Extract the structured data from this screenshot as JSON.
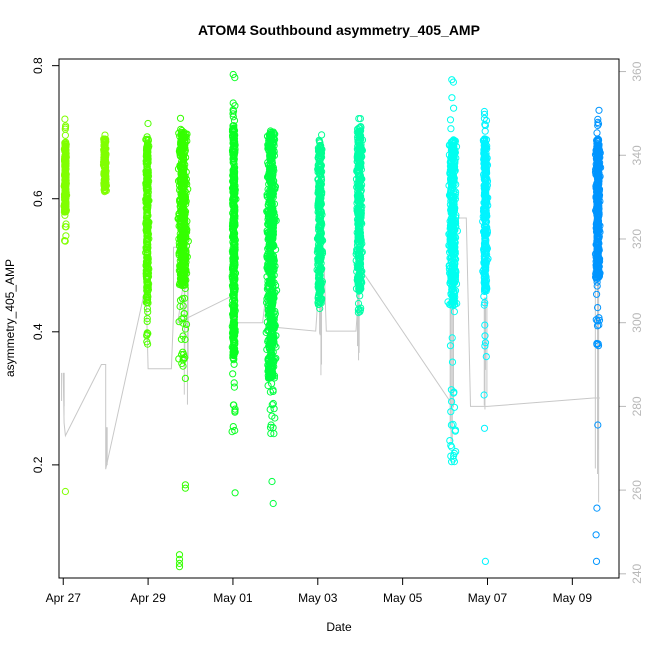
{
  "chart_data": {
    "type": "scatter",
    "title": "ATOM4 Southbound asymmetry_405_AMP",
    "xlabel": "Date",
    "ylabel": "asymmetry_405_AMP",
    "x_ticks": [
      {
        "day": 0,
        "label": "Apr 27"
      },
      {
        "day": 2,
        "label": "Apr 29"
      },
      {
        "day": 4,
        "label": "May 01"
      },
      {
        "day": 6,
        "label": "May 03"
      },
      {
        "day": 8,
        "label": "May 05"
      },
      {
        "day": 10,
        "label": "May 07"
      },
      {
        "day": 12,
        "label": "May 09"
      }
    ],
    "xlim": [
      -0.1,
      13.1
    ],
    "y_ticks": [
      0.2,
      0.4,
      0.6,
      0.8
    ],
    "y_tick_labels": [
      "0.2",
      "0.4",
      "0.6",
      "0.8"
    ],
    "ylim": [
      0.03,
      0.81
    ],
    "right_axis": {
      "ticks": [
        240,
        260,
        280,
        300,
        320,
        340,
        360
      ],
      "tick_labels": [
        "240",
        "260",
        "280",
        "300",
        "320",
        "340",
        "360"
      ],
      "lim": [
        239,
        363
      ],
      "color": "#b8b8b8"
    },
    "point_clusters": [
      {
        "x_center": 0.05,
        "width": 0.07,
        "color": "#80FF00",
        "core": [
          0.58,
          0.68
        ],
        "min": 0.535,
        "max": 0.72,
        "count": 240,
        "outliers": [
          {
            "x": 0.05,
            "y": 0.16
          }
        ]
      },
      {
        "x_center": 0.98,
        "width": 0.1,
        "color": "#80FF00",
        "core": [
          0.61,
          0.69
        ],
        "min": 0.605,
        "max": 0.7,
        "count": 150,
        "outliers": []
      },
      {
        "x_center": 1.98,
        "width": 0.1,
        "color": "#50FF00",
        "core": [
          0.44,
          0.69
        ],
        "min": 0.38,
        "max": 0.715,
        "count": 300,
        "outliers": [
          {
            "x": 1.97,
            "y": 0.385
          }
        ]
      },
      {
        "x_center": 2.82,
        "width": 0.3,
        "color": "#35FF00",
        "core": [
          0.47,
          0.7
        ],
        "min": 0.33,
        "max": 0.745,
        "count": 500,
        "outliers": [
          {
            "x": 2.88,
            "y": 0.33
          },
          {
            "x": 2.88,
            "y": 0.17
          },
          {
            "x": 2.88,
            "y": 0.165
          },
          {
            "x": 2.74,
            "y": 0.065
          },
          {
            "x": 2.74,
            "y": 0.058
          },
          {
            "x": 2.74,
            "y": 0.052
          },
          {
            "x": 2.74,
            "y": 0.047
          }
        ]
      },
      {
        "x_center": 4.02,
        "width": 0.12,
        "color": "#0AFF22",
        "core": [
          0.36,
          0.71
        ],
        "min": 0.25,
        "max": 0.79,
        "count": 450,
        "outliers": [
          {
            "x": 3.98,
            "y": 0.25
          },
          {
            "x": 4.05,
            "y": 0.158
          },
          {
            "x": 4.02,
            "y": 0.29
          }
        ]
      },
      {
        "x_center": 4.9,
        "width": 0.3,
        "color": "#00FF40",
        "core": [
          0.33,
          0.7
        ],
        "min": 0.245,
        "max": 0.705,
        "count": 700,
        "outliers": [
          {
            "x": 4.92,
            "y": 0.175
          },
          {
            "x": 4.95,
            "y": 0.142
          },
          {
            "x": 4.9,
            "y": 0.26
          }
        ]
      },
      {
        "x_center": 6.05,
        "width": 0.18,
        "color": "#00FF90",
        "core": [
          0.44,
          0.68
        ],
        "min": 0.425,
        "max": 0.705,
        "count": 320,
        "outliers": []
      },
      {
        "x_center": 6.98,
        "width": 0.2,
        "color": "#00FFA8",
        "core": [
          0.46,
          0.71
        ],
        "min": 0.425,
        "max": 0.73,
        "count": 400,
        "outliers": []
      },
      {
        "x_center": 9.18,
        "width": 0.28,
        "color": "#00FFF0",
        "core": [
          0.44,
          0.69
        ],
        "min": 0.2,
        "max": 0.79,
        "count": 420,
        "outliers": [
          {
            "x": 9.22,
            "y": 0.205
          },
          {
            "x": 9.25,
            "y": 0.22
          },
          {
            "x": 9.15,
            "y": 0.26
          }
        ]
      },
      {
        "x_center": 9.95,
        "width": 0.16,
        "color": "#00F4FF",
        "core": [
          0.46,
          0.69
        ],
        "min": 0.36,
        "max": 0.735,
        "count": 320,
        "outliers": [
          {
            "x": 9.93,
            "y": 0.255
          },
          {
            "x": 9.95,
            "y": 0.055
          },
          {
            "x": 9.92,
            "y": 0.305
          }
        ]
      },
      {
        "x_center": 12.6,
        "width": 0.16,
        "color": "#0095FF",
        "core": [
          0.48,
          0.69
        ],
        "min": 0.37,
        "max": 0.735,
        "count": 420,
        "outliers": [
          {
            "x": 12.58,
            "y": 0.135
          },
          {
            "x": 12.56,
            "y": 0.095
          },
          {
            "x": 12.57,
            "y": 0.055
          },
          {
            "x": 12.6,
            "y": 0.26
          }
        ]
      }
    ],
    "secondary_trace": {
      "color": "#c8c8c8",
      "path": [
        [
          0.0,
          288
        ],
        [
          0.02,
          276
        ],
        [
          0.05,
          273
        ],
        [
          0.9,
          290
        ],
        [
          1.0,
          290
        ],
        [
          1.0,
          275
        ],
        [
          1.0,
          265
        ],
        [
          1.95,
          309
        ],
        [
          2.0,
          289
        ],
        [
          2.55,
          289
        ],
        [
          2.6,
          302
        ],
        [
          2.6,
          318
        ],
        [
          2.95,
          318
        ],
        [
          2.7,
          300
        ],
        [
          3.9,
          306
        ],
        [
          4.05,
          306
        ],
        [
          4.05,
          300
        ],
        [
          4.7,
          300
        ],
        [
          4.85,
          313
        ],
        [
          4.95,
          313
        ],
        [
          4.9,
          299
        ],
        [
          5.95,
          298
        ],
        [
          6.05,
          313
        ],
        [
          6.15,
          313
        ],
        [
          6.2,
          298
        ],
        [
          6.9,
          298
        ],
        [
          7.0,
          313
        ],
        [
          9.2,
          280
        ],
        [
          9.2,
          325
        ],
        [
          9.5,
          325
        ],
        [
          9.6,
          280
        ],
        [
          10.0,
          280
        ],
        [
          12.5,
          282
        ],
        [
          12.65,
          282
        ]
      ],
      "drops": [
        {
          "x": 0.0,
          "y_top": 288,
          "y_bottom": 276
        },
        {
          "x": 1.0,
          "y_top": 275,
          "y_bottom": 265
        },
        {
          "x": 2.9,
          "y_top": 318,
          "y_bottom": 272
        },
        {
          "x": 4.0,
          "y_top": 306,
          "y_bottom": 296
        },
        {
          "x": 4.9,
          "y_top": 312,
          "y_bottom": 288
        },
        {
          "x": 6.05,
          "y_top": 312,
          "y_bottom": 286
        },
        {
          "x": 6.95,
          "y_top": 312,
          "y_bottom": 290
        },
        {
          "x": 9.15,
          "y_top": 324,
          "y_bottom": 271
        },
        {
          "x": 9.95,
          "y_top": 306,
          "y_bottom": 276
        },
        {
          "x": 12.6,
          "y_top": 310,
          "y_bottom": 248
        }
      ]
    }
  }
}
